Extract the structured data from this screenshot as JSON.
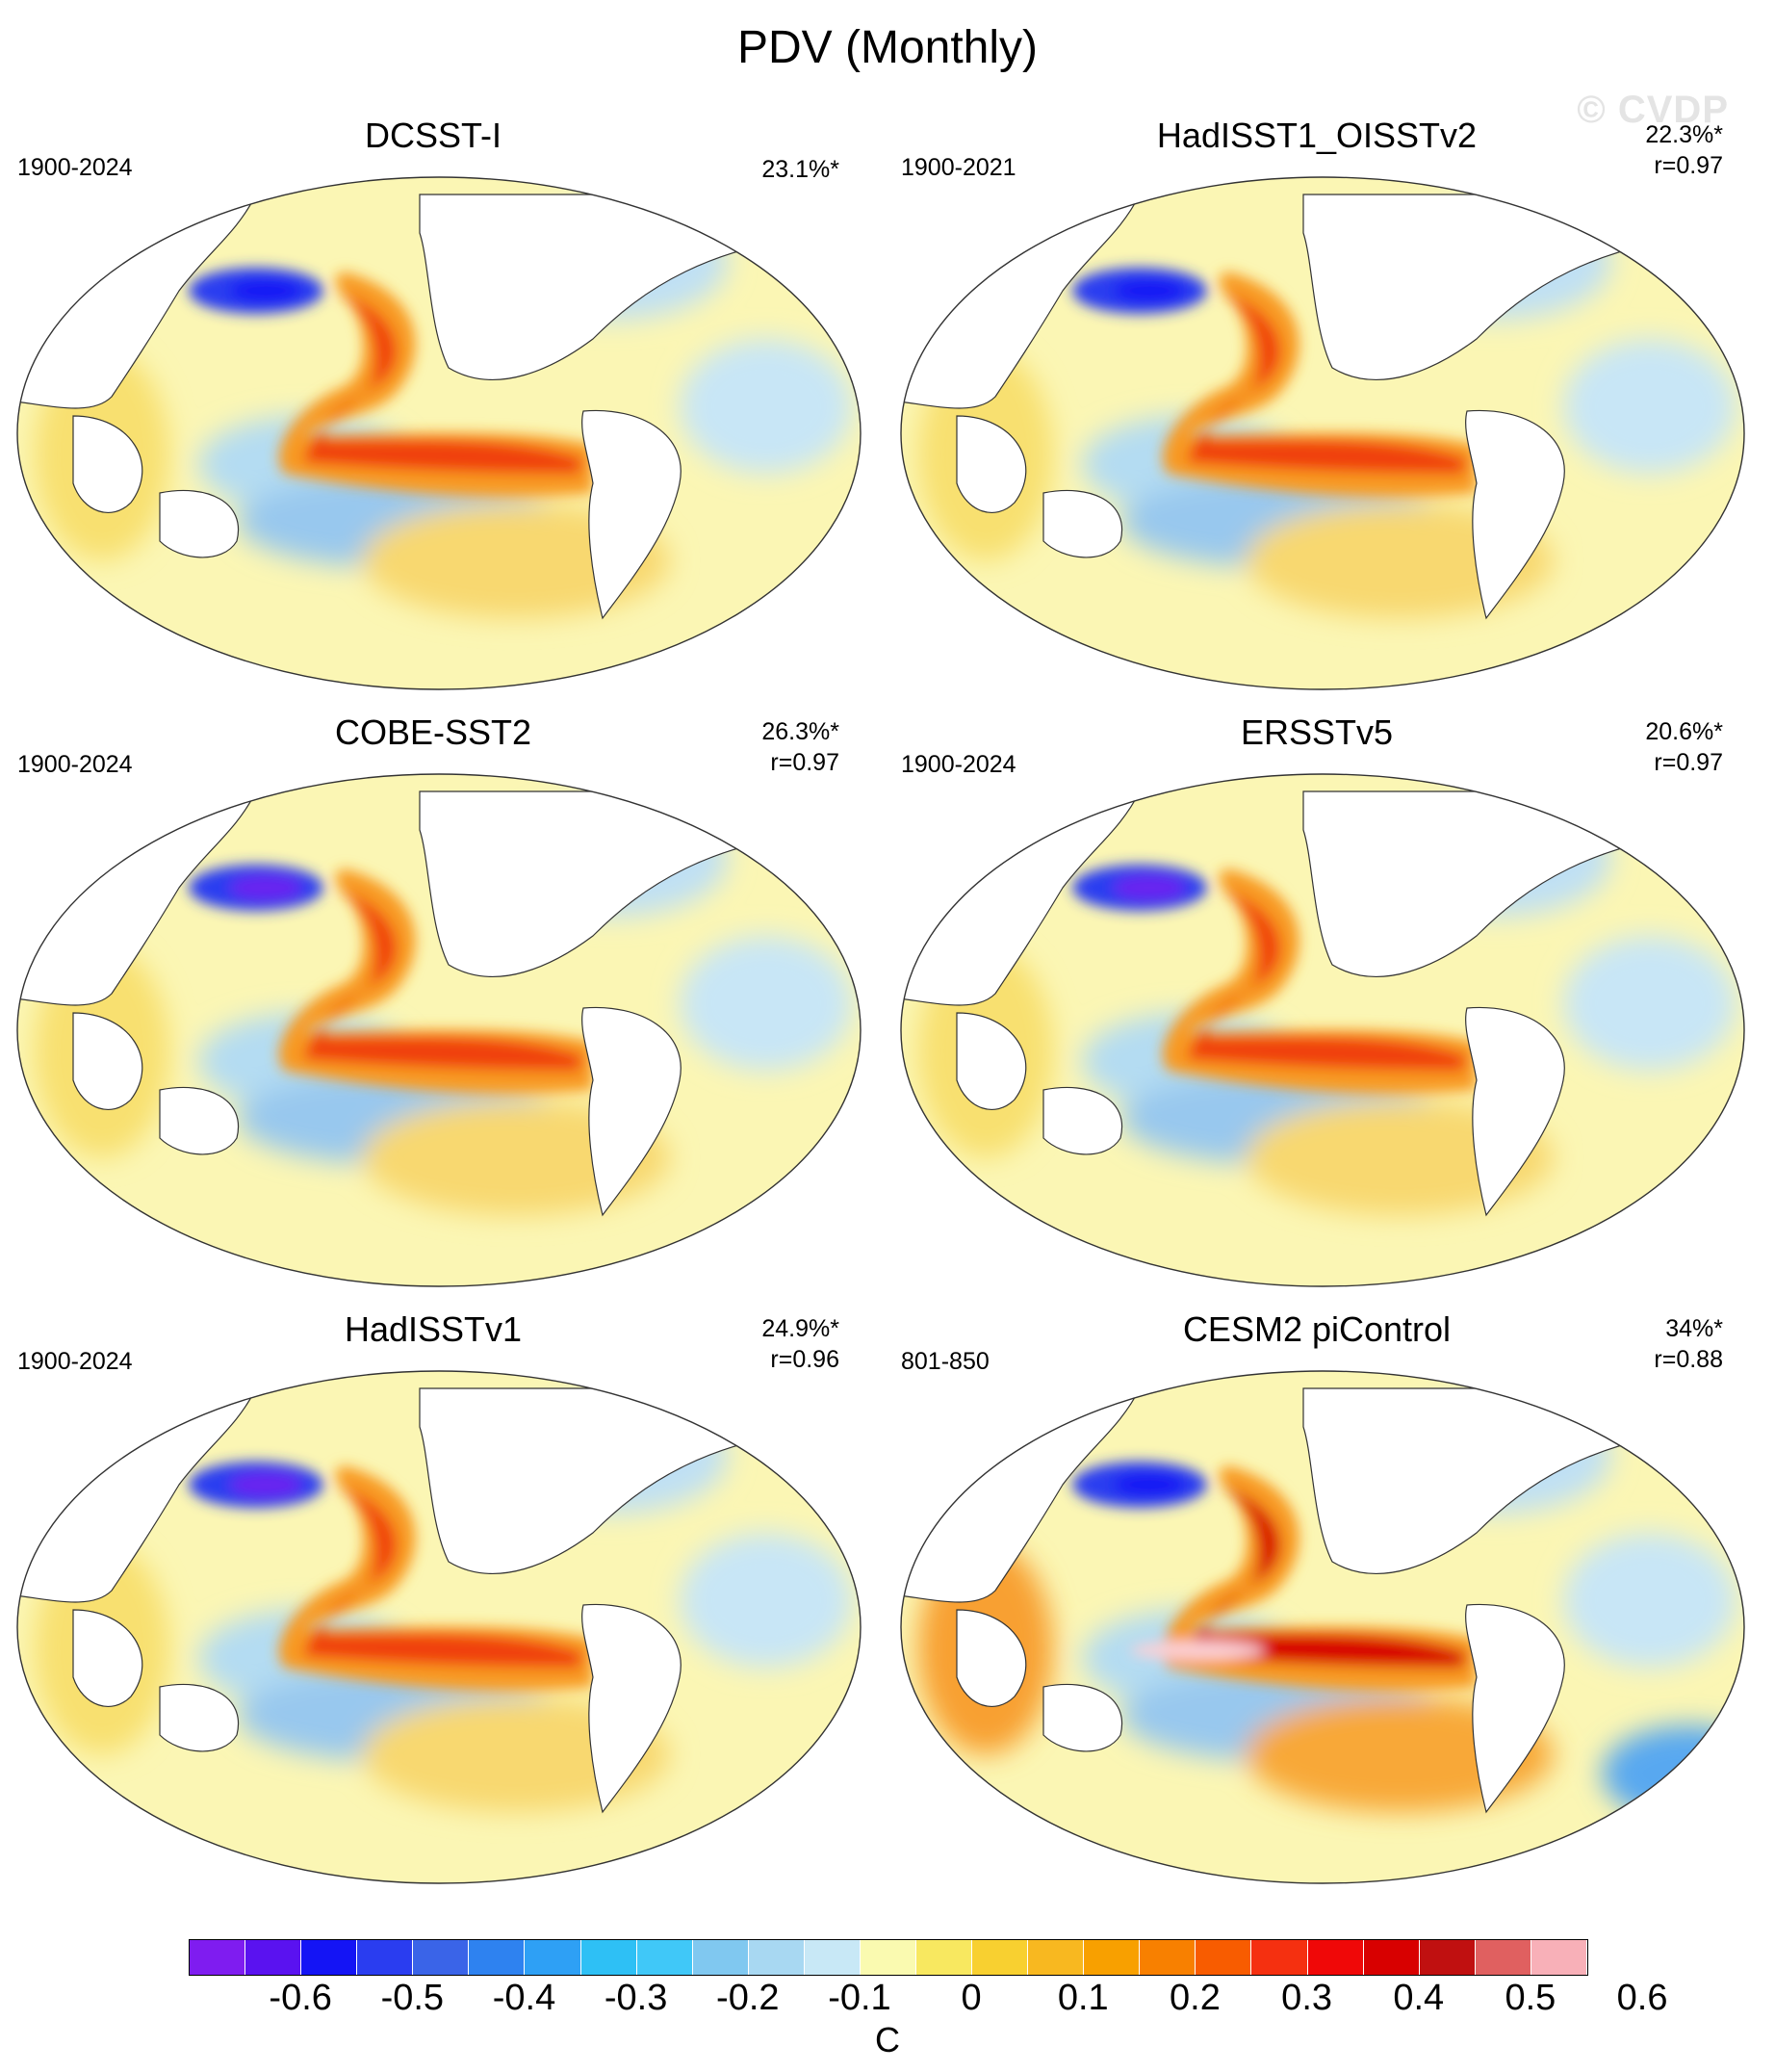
{
  "title": "PDV (Monthly)",
  "watermark": "© CVDP",
  "panels": [
    {
      "title": "DCSST-I",
      "period": "1900-2024",
      "pct": "23.1%*",
      "r": null
    },
    {
      "title": "HadISST1_OISSTv2",
      "period": "1900-2021",
      "pct": "22.3%*",
      "r": "r=0.97"
    },
    {
      "title": "COBE-SST2",
      "period": "1900-2024",
      "pct": "26.3%*",
      "r": "r=0.97"
    },
    {
      "title": "ERSSTv5",
      "period": "1900-2024",
      "pct": "20.6%*",
      "r": "r=0.97"
    },
    {
      "title": "HadISSTv1",
      "period": "1900-2024",
      "pct": "24.9%*",
      "r": "r=0.96"
    },
    {
      "title": "CESM2 piControl",
      "period": "801-850",
      "pct": "34%*",
      "r": "r=0.88"
    }
  ],
  "colorbar": {
    "colors": [
      "#7f1cf0",
      "#5a12f0",
      "#1414f5",
      "#2a3df0",
      "#3a64e8",
      "#2e82f0",
      "#2ea0f5",
      "#2ec0f5",
      "#40c8f8",
      "#80c8f0",
      "#a8d8f2",
      "#c8e8f6",
      "#fafab0",
      "#f8e860",
      "#f8d030",
      "#f8b820",
      "#f8a000",
      "#f88000",
      "#f85c00",
      "#f53010",
      "#f00808",
      "#d80000",
      "#c01010",
      "#e06060",
      "#f8b0b8"
    ],
    "ticks": [
      "-0.6",
      "-0.5",
      "-0.4",
      "-0.3",
      "-0.2",
      "-0.1",
      "0",
      "0.1",
      "0.2",
      "0.3",
      "0.4",
      "0.5",
      "0.6"
    ],
    "unit": "C"
  }
}
